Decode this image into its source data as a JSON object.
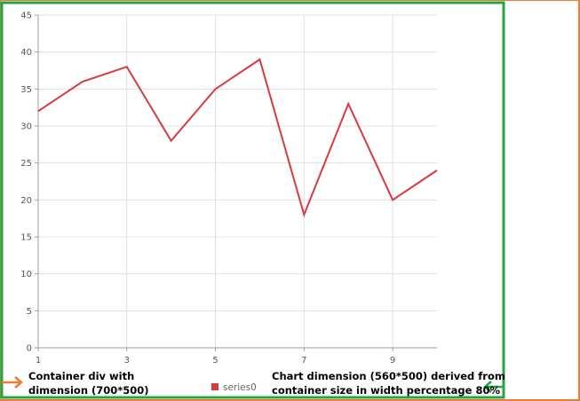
{
  "colors": {
    "container_border": "#ED7D31",
    "chart_border": "#21A545",
    "series_line": "#D83B3F",
    "grid": "#E0E0E0",
    "axis": "#9E9E9E"
  },
  "annotations": {
    "left_line1": "Container div with",
    "left_line2": "dimension (700*500)",
    "right_line1": "Chart dimension (560*500) derived from",
    "right_line2": "container size in width percentage 80%",
    "left_arrow_icon": "arrow-right-icon",
    "right_arrow_icon": "arrow-left-icon"
  },
  "chart_data": {
    "type": "line",
    "title": "",
    "xlabel": "",
    "ylabel": "",
    "x": [
      1,
      2,
      3,
      4,
      5,
      6,
      7,
      8,
      9,
      10
    ],
    "series": [
      {
        "name": "series0",
        "values": [
          32,
          36,
          38,
          28,
          35,
          39,
          18,
          33,
          20,
          24
        ]
      }
    ],
    "xlim": [
      1,
      10
    ],
    "ylim": [
      0,
      45
    ],
    "x_ticks": [
      1,
      3,
      5,
      7,
      9
    ],
    "y_ticks": [
      0,
      5,
      10,
      15,
      20,
      25,
      30,
      35,
      40,
      45
    ],
    "grid": true,
    "legend_position": "bottom-center"
  }
}
